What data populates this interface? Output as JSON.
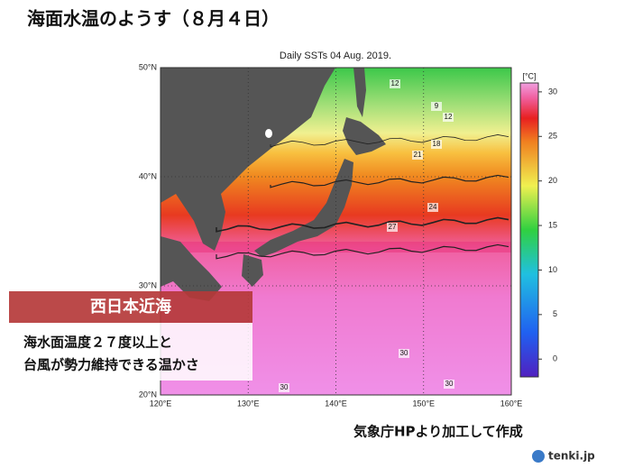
{
  "header": {
    "title": "海面水温のようす（８月４日）"
  },
  "map": {
    "title": "Daily SSTs 04 Aug. 2019.",
    "lon_lim": [
      120,
      160
    ],
    "lat_lim": [
      20,
      50
    ],
    "lon_ticks": [
      {
        "value": 120,
        "label": "120°E"
      },
      {
        "value": 130,
        "label": "130°E"
      },
      {
        "value": 140,
        "label": "140°E"
      },
      {
        "value": 150,
        "label": "150°E"
      },
      {
        "value": 160,
        "label": "160°E"
      }
    ],
    "lat_ticks": [
      {
        "value": 20,
        "label": "20°N"
      },
      {
        "value": 30,
        "label": "30°N"
      },
      {
        "value": 40,
        "label": "40°N"
      },
      {
        "value": 50,
        "label": "50°N"
      }
    ],
    "contour_labels": [
      12,
      9,
      12,
      18,
      21,
      24,
      27,
      30,
      30,
      30
    ],
    "colorbar": {
      "unit": "[°C]",
      "lim": [
        -2,
        31
      ],
      "ticks": [
        0,
        5,
        10,
        15,
        20,
        25,
        30
      ]
    }
  },
  "overlay": {
    "heading": "西日本近海",
    "lines": [
      "海水面温度２７度以上と",
      "台風が勢力維持できる温かさ"
    ]
  },
  "footer": {
    "source": "気象庁HPより加工して作成",
    "brand": "tenki.jp"
  }
}
